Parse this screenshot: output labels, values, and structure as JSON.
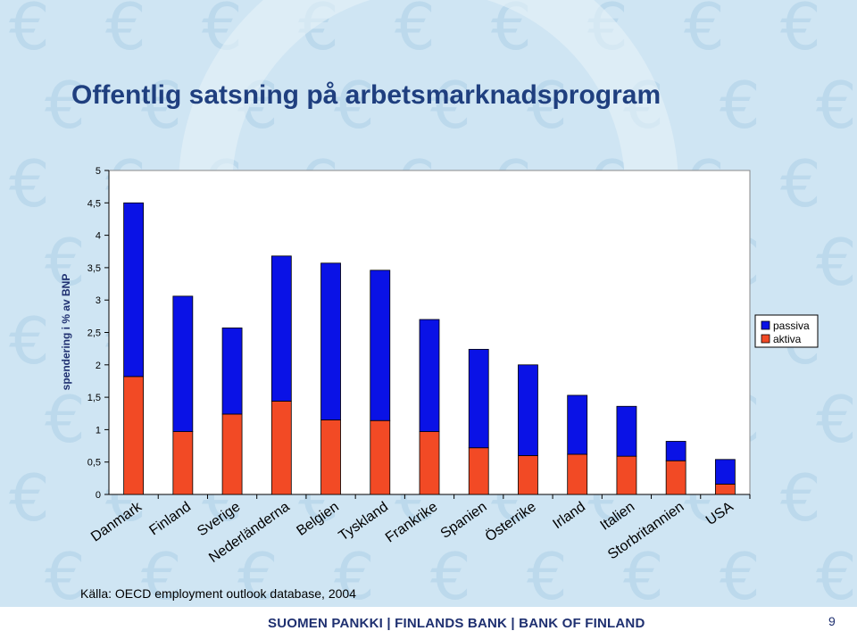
{
  "title": "Offentlig satsning på arbetsmarknadsprogram",
  "source": "Källa: OECD employment outlook database, 2004",
  "footer": {
    "bank": "SUOMEN PANKKI | FINLANDS BANK | BANK OF FINLAND",
    "page": "9"
  },
  "colors": {
    "passiva": "#0a12e6",
    "aktiva": "#f24a25",
    "title": "#1f3f7f",
    "background": "#cfe5f3"
  },
  "chart_data": {
    "type": "bar",
    "stacked": true,
    "ylabel": "spendering i % av BNP",
    "ylim": [
      0,
      5
    ],
    "yticks": [
      "0",
      "0,5",
      "1",
      "1,5",
      "2",
      "2,5",
      "3",
      "3,5",
      "4",
      "4,5",
      "5"
    ],
    "grid": false,
    "legend_position": "right",
    "categories": [
      "Danmark",
      "Finland",
      "Sverige",
      "Nederländerna",
      "Belgien",
      "Tyskland",
      "Frankrike",
      "Spanien",
      "Österrike",
      "Irland",
      "Italien",
      "Storbritannien",
      "USA"
    ],
    "series": [
      {
        "name": "aktiva",
        "values": [
          1.82,
          0.97,
          1.24,
          1.44,
          1.15,
          1.14,
          0.97,
          0.72,
          0.6,
          0.62,
          0.59,
          0.52,
          0.16
        ]
      },
      {
        "name": "passiva",
        "values": [
          2.68,
          2.09,
          1.33,
          2.24,
          2.42,
          2.32,
          1.73,
          1.52,
          1.4,
          0.91,
          0.77,
          0.3,
          0.38
        ]
      }
    ]
  }
}
